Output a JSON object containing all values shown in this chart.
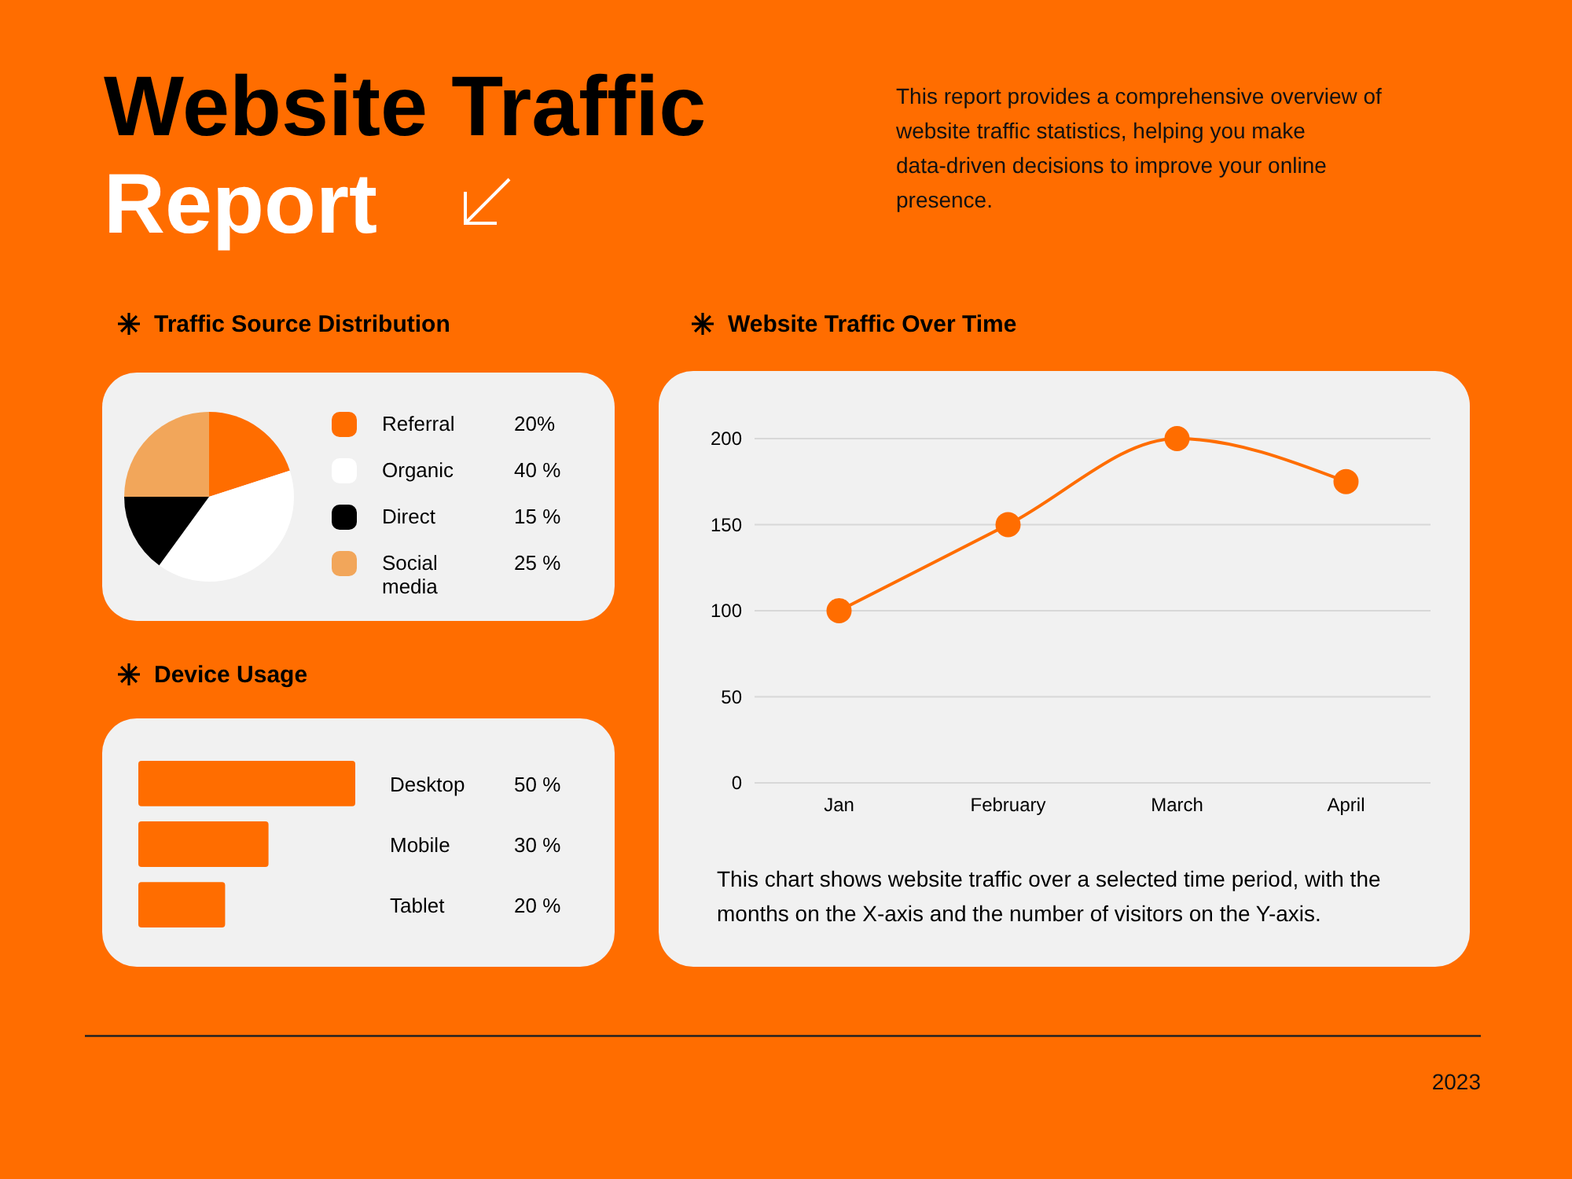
{
  "chart_data": [
    {
      "type": "other",
      "title": "Website Traffic Report",
      "subtitle": "This report provides a comprehensive overview of website traffic statistics, helping you make data-driven decisions to improve your online presence.",
      "annotations": [
        "2023"
      ]
    },
    {
      "type": "pie",
      "title": "Traffic Source Distribution",
      "categories": [
        "Referral",
        "Organic",
        "Direct",
        "Social media"
      ],
      "values": [
        20,
        40,
        15,
        25
      ],
      "colors": [
        "#ff6d00",
        "#ffffff",
        "#000000",
        "#f2a65a"
      ],
      "value_labels": [
        "20%",
        "40 %",
        "15 %",
        "25 %"
      ],
      "legend": "right"
    },
    {
      "type": "bar",
      "orientation": "horizontal",
      "title": "Device Usage",
      "categories": [
        "Desktop",
        "Mobile",
        "Tablet"
      ],
      "values": [
        50,
        30,
        20
      ],
      "color": "#ff6d00",
      "value_labels": [
        "50 %",
        "30 %",
        "20 %"
      ]
    },
    {
      "type": "line",
      "title": "Website Traffic Over Time",
      "categories": [
        "Jan",
        "February",
        "March",
        "April"
      ],
      "values": [
        100,
        150,
        200,
        175
      ],
      "color": "#ff6d00",
      "ylim": [
        0,
        200
      ],
      "yticks": [
        0,
        50,
        100,
        150,
        200
      ],
      "grid": "y",
      "marker": "circle",
      "annotations": [
        "This chart shows website traffic over a selected time period, with the months on the X-axis and the number of visitors on the Y-axis."
      ]
    }
  ]
}
